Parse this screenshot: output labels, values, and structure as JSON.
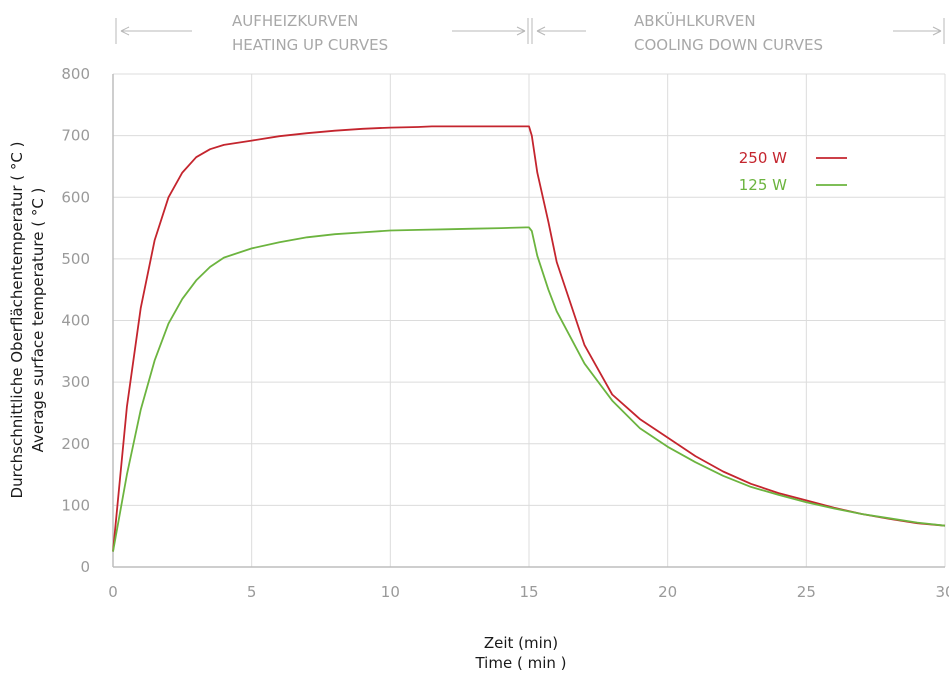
{
  "chart_data": {
    "type": "line",
    "xlabel": [
      "Zeit (min)",
      "Time ( min )"
    ],
    "ylabel": [
      "Durchschnittliche Oberflächentemperatur ( °C )",
      "Average surface temperature ( °C )"
    ],
    "xlim": [
      0,
      30
    ],
    "ylim": [
      0,
      800
    ],
    "xticks": [
      0,
      5,
      10,
      15,
      20,
      25,
      30
    ],
    "yticks": [
      0,
      100,
      200,
      300,
      400,
      500,
      600,
      700,
      800
    ],
    "grid": true,
    "legend_position": "top-right",
    "phases": [
      {
        "lines": [
          "AUFHEIZKURVEN",
          "HEATING UP CURVES"
        ],
        "x_range": [
          0,
          15
        ]
      },
      {
        "lines": [
          "ABKÜHLKURVEN",
          "COOLING DOWN CURVES"
        ],
        "x_range": [
          15,
          30
        ]
      }
    ],
    "series": [
      {
        "name": "250 W",
        "color": "#c4252e",
        "x": [
          0,
          0.5,
          1,
          1.5,
          2,
          2.5,
          3,
          3.5,
          4,
          5,
          6,
          7,
          8,
          9,
          10,
          11,
          11.5,
          12,
          13,
          14,
          14.9,
          15,
          15.1,
          15.3,
          15.7,
          16,
          17,
          18,
          19,
          20,
          21,
          22,
          23,
          24,
          25,
          26,
          27,
          28,
          29,
          30
        ],
        "y": [
          25,
          260,
          420,
          530,
          600,
          640,
          665,
          678,
          685,
          692,
          699,
          704,
          708,
          711,
          713,
          714,
          715,
          715,
          715,
          715,
          715,
          715,
          700,
          640,
          560,
          495,
          360,
          280,
          240,
          210,
          180,
          155,
          135,
          120,
          108,
          96,
          86,
          78,
          71,
          67
        ]
      },
      {
        "name": "125 W",
        "color": "#6cb43f",
        "x": [
          0,
          0.5,
          1,
          1.5,
          2,
          2.5,
          3,
          3.5,
          4,
          5,
          6,
          7,
          8,
          9,
          10,
          11,
          12,
          13,
          14,
          14.9,
          15,
          15.1,
          15.3,
          15.7,
          16,
          17,
          18,
          19,
          20,
          21,
          22,
          23,
          24,
          25,
          26,
          27,
          28,
          29,
          30
        ],
        "y": [
          25,
          150,
          255,
          335,
          395,
          435,
          465,
          487,
          502,
          517,
          527,
          535,
          540,
          543,
          546,
          547,
          548,
          549,
          550,
          551,
          551,
          545,
          505,
          450,
          415,
          330,
          270,
          225,
          195,
          170,
          148,
          130,
          117,
          105,
          95,
          86,
          79,
          72,
          67
        ]
      }
    ]
  }
}
